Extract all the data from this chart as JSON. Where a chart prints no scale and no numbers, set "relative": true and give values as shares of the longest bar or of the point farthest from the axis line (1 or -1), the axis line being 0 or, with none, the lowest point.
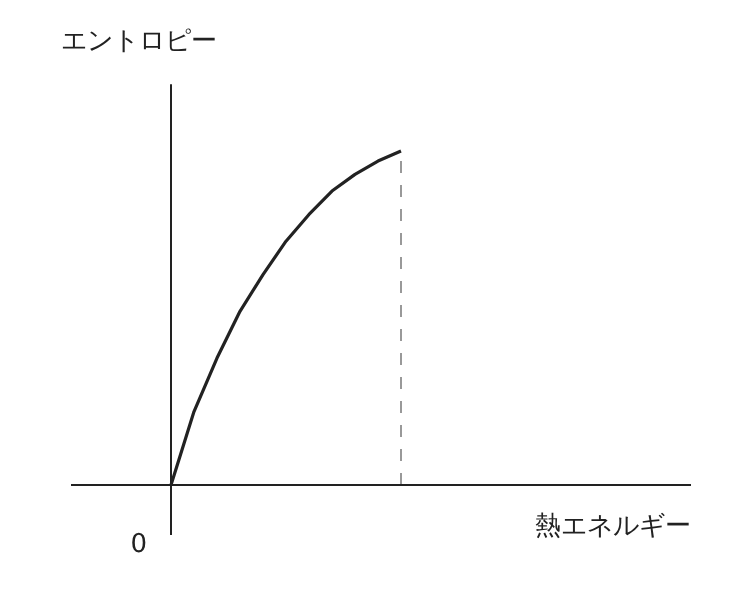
{
  "chart_data": {
    "type": "line",
    "ylabel": "エントロピー",
    "xlabel": "熱エネルギー",
    "annotations": [
      "0"
    ],
    "relative": true,
    "categories": [
      null,
      null,
      null,
      null,
      null,
      null,
      null,
      null,
      null,
      null,
      null
    ],
    "series": [
      {
        "color": "#222222",
        "values": [
          0,
          0.22,
          0.38,
          0.52,
          0.63,
          0.73,
          0.81,
          0.88,
          0.93,
          0.97,
          1.0
        ]
      }
    ],
    "ref_lines": [
      {
        "axis": "x",
        "line_style": "dashed",
        "color": "#999999"
      }
    ],
    "marker": "none",
    "line_style": "solid"
  }
}
